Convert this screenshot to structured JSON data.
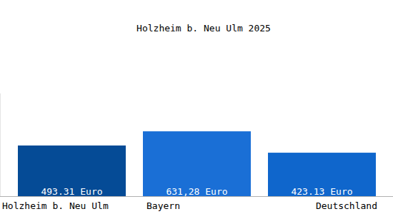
{
  "chart_data": {
    "type": "bar",
    "title": "Holzheim b. Neu Ulm 2025",
    "categories": [
      "Holzheim b. Neu Ulm",
      "Bayern",
      "Deutschland"
    ],
    "values": [
      493.31,
      631.28,
      423.13
    ],
    "value_labels": [
      "493.31 Euro",
      "631,28 Euro",
      "423.13 Euro"
    ],
    "colors": [
      "#054b96",
      "#1a6fd6",
      "#0f66cc"
    ],
    "ylim": [
      0,
      1000
    ],
    "data_labels": true,
    "tick_labels": "x",
    "grid": false
  }
}
